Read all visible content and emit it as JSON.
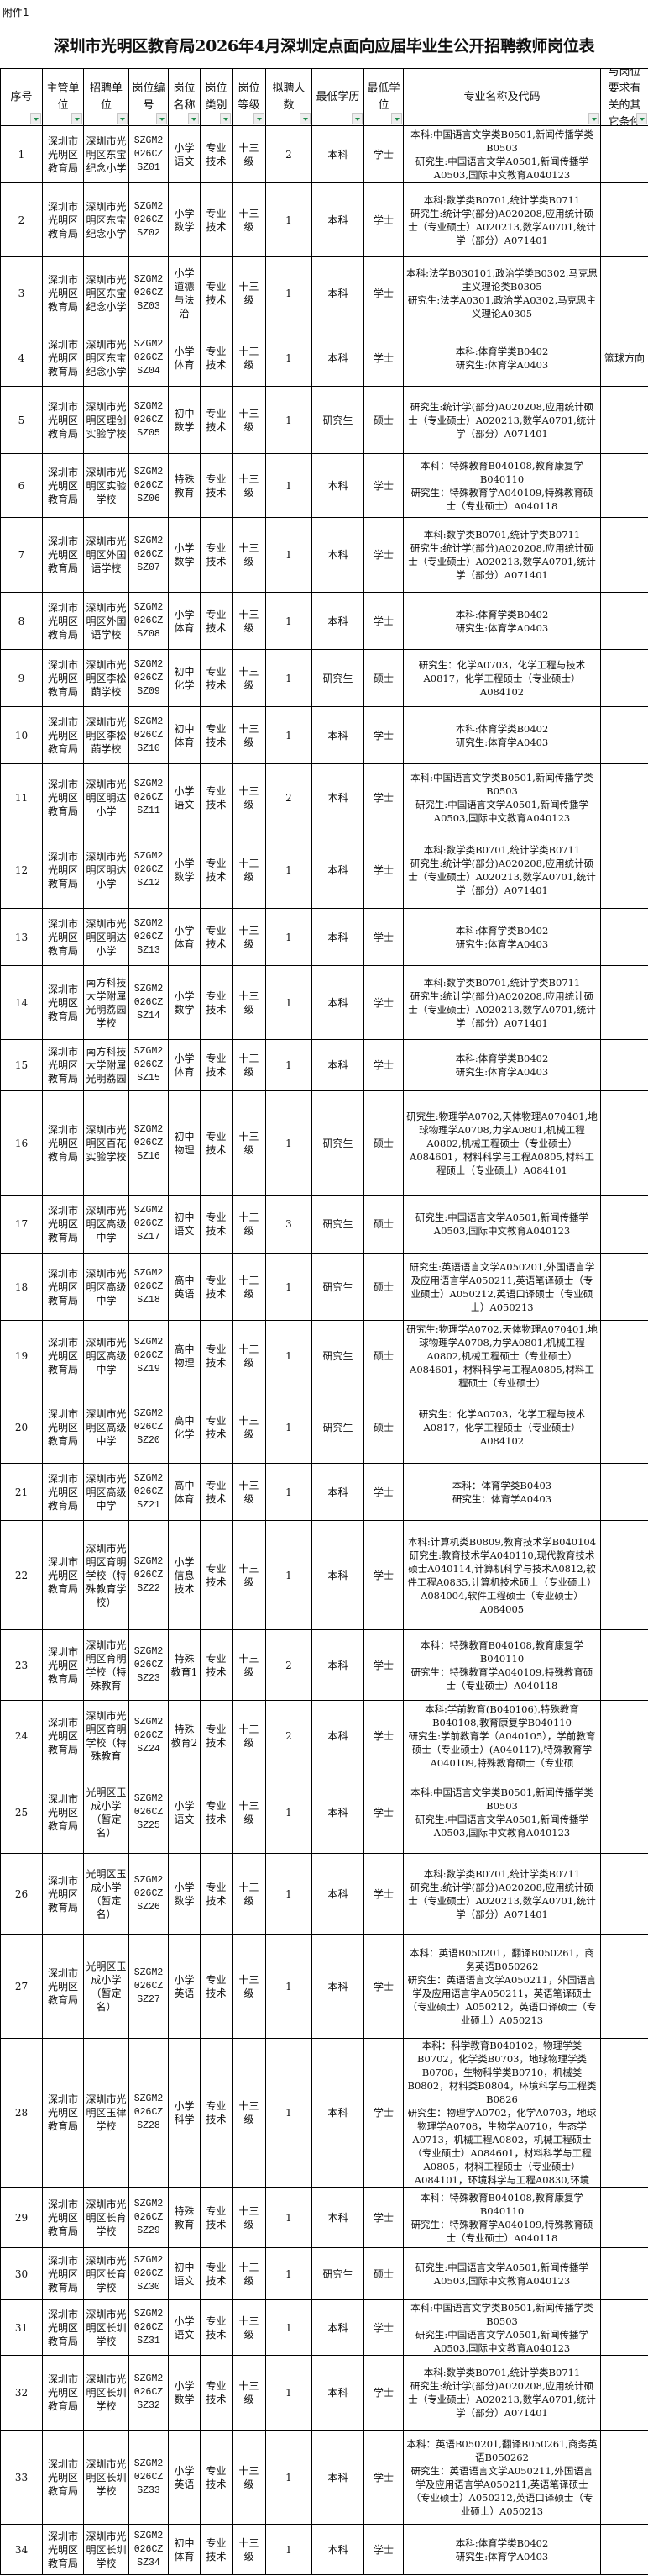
{
  "attachment_label": "附件1",
  "title": "深圳市光明区教育局2026年4月深圳定点面向应届毕业生公开招聘教师岗位表",
  "filter_icon_color": "#1e8a4a",
  "columns": [
    "序号",
    "主管单位",
    "招聘单位",
    "岗位编号",
    "岗位名称",
    "岗位类别",
    "岗位等级",
    "拟聘人数",
    "最低学历",
    "最低学位",
    "专业名称及代码",
    "与岗位要求有关的其它条件"
  ],
  "rows": [
    {
      "no": "1",
      "dept": "深圳市光明区教育局",
      "unit": "深圳市光明区东宝纪念小学",
      "code": "SZGM2026CZSZ01",
      "post": "小学语文",
      "type": "专业技术",
      "level": "十三级",
      "count": "2",
      "edu": "本科",
      "degree": "学士",
      "major": "本科:中国语言文学类B0501,新闻传播学类B0503\n研究生:中国语言文学A0501,新闻传播学A0503,国际中文教育A040123",
      "other": ""
    },
    {
      "no": "2",
      "dept": "深圳市光明区教育局",
      "unit": "深圳市光明区东宝纪念小学",
      "code": "SZGM2026CZSZ02",
      "post": "小学数学",
      "type": "专业技术",
      "level": "十三级",
      "count": "1",
      "edu": "本科",
      "degree": "学士",
      "major": "本科:数学类B0701,统计学类B0711\n研究生:统计学(部分)A020208,应用统计硕士（专业硕士）A020213,数学A0701,统计学（部分）A071401",
      "other": ""
    },
    {
      "no": "3",
      "dept": "深圳市光明区教育局",
      "unit": "深圳市光明区东宝纪念小学",
      "code": "SZGM2026CZSZ03",
      "post": "小学道德与法治",
      "type": "专业技术",
      "level": "十三级",
      "count": "1",
      "edu": "本科",
      "degree": "学士",
      "major": "本科:法学B030101,政治学类B0302,马克思主义理论类B0305\n研究生:法学A0301,政治学A0302,马克思主义理论A0305",
      "other": ""
    },
    {
      "no": "4",
      "dept": "深圳市光明区教育局",
      "unit": "深圳市光明区东宝纪念小学",
      "code": "SZGM2026CZSZ04",
      "post": "小学体育",
      "type": "专业技术",
      "level": "十三级",
      "count": "1",
      "edu": "本科",
      "degree": "学士",
      "major": "本科:体育学类B0402\n研究生:体育学A0403",
      "other": "篮球方向"
    },
    {
      "no": "5",
      "dept": "深圳市光明区教育局",
      "unit": "深圳市光明区理创实验学校",
      "code": "SZGM2026CZSZ05",
      "post": "初中数学",
      "type": "专业技术",
      "level": "十三级",
      "count": "1",
      "edu": "研究生",
      "degree": "硕士",
      "major": "研究生:统计学(部分)A020208,应用统计硕士（专业硕士）A020213,数学A0701,统计学（部分）A071401",
      "other": ""
    },
    {
      "no": "6",
      "dept": "深圳市光明区教育局",
      "unit": "深圳市光明区实验学校",
      "code": "SZGM2026CZSZ06",
      "post": "特殊教育",
      "type": "专业技术",
      "level": "十三级",
      "count": "1",
      "edu": "本科",
      "degree": "学士",
      "major": "本科：特殊教育B040108,教育康复学B040110\n研究生：特殊教育学A040109,特殊教育硕士（专业硕士）A040118",
      "other": ""
    },
    {
      "no": "7",
      "dept": "深圳市光明区教育局",
      "unit": "深圳市光明区外国语学校",
      "code": "SZGM2026CZSZ07",
      "post": "小学数学",
      "type": "专业技术",
      "level": "十三级",
      "count": "1",
      "edu": "本科",
      "degree": "学士",
      "major": "本科:数学类B0701,统计学类B0711\n研究生:统计学(部分)A020208,应用统计硕士（专业硕士）A020213,数学A0701,统计学（部分）A071401",
      "other": ""
    },
    {
      "no": "8",
      "dept": "深圳市光明区教育局",
      "unit": "深圳市光明区外国语学校",
      "code": "SZGM2026CZSZ08",
      "post": "小学体育",
      "type": "专业技术",
      "level": "十三级",
      "count": "1",
      "edu": "本科",
      "degree": "学士",
      "major": "本科:体育学类B0402\n研究生:体育学A0403",
      "other": ""
    },
    {
      "no": "9",
      "dept": "深圳市光明区教育局",
      "unit": "深圳市光明区李松蓢学校",
      "code": "SZGM2026CZSZ09",
      "post": "初中化学",
      "type": "专业技术",
      "level": "十三级",
      "count": "1",
      "edu": "研究生",
      "degree": "硕士",
      "major": "研究生：化学A0703，化学工程与技术A0817，化学工程硕士（专业硕士）A084102",
      "other": ""
    },
    {
      "no": "10",
      "dept": "深圳市光明区教育局",
      "unit": "深圳市光明区李松蓢学校",
      "code": "SZGM2026CZSZ10",
      "post": "初中体育",
      "type": "专业技术",
      "level": "十三级",
      "count": "1",
      "edu": "本科",
      "degree": "学士",
      "major": "本科:体育学类B0402\n研究生:体育学A0403",
      "other": ""
    },
    {
      "no": "11",
      "dept": "深圳市光明区教育局",
      "unit": "深圳市光明区明达小学",
      "code": "SZGM2026CZSZ11",
      "post": "小学语文",
      "type": "专业技术",
      "level": "十三级",
      "count": "2",
      "edu": "本科",
      "degree": "学士",
      "major": "本科:中国语言文学类B0501,新闻传播学类B0503\n研究生:中国语言文学A0501,新闻传播学A0503,国际中文教育A040123",
      "other": ""
    },
    {
      "no": "12",
      "dept": "深圳市光明区教育局",
      "unit": "深圳市光明区明达小学",
      "code": "SZGM2026CZSZ12",
      "post": "小学数学",
      "type": "专业技术",
      "level": "十三级",
      "count": "1",
      "edu": "本科",
      "degree": "学士",
      "major": "本科:数学类B0701,统计学类B0711\n研究生:统计学(部分)A020208,应用统计硕士（专业硕士）A020213,数学A0701,统计学（部分）A071401",
      "other": ""
    },
    {
      "no": "13",
      "dept": "深圳市光明区教育局",
      "unit": "深圳市光明区明达小学",
      "code": "SZGM2026CZSZ13",
      "post": "小学体育",
      "type": "专业技术",
      "level": "十三级",
      "count": "1",
      "edu": "本科",
      "degree": "学士",
      "major": "本科:体育学类B0402\n研究生:体育学A0403",
      "other": ""
    },
    {
      "no": "14",
      "dept": "深圳市光明区教育局",
      "unit": "南方科技大学附属光明荔园学校",
      "code": "SZGM2026CZSZ14",
      "post": "小学数学",
      "type": "专业技术",
      "level": "十三级",
      "count": "1",
      "edu": "本科",
      "degree": "学士",
      "major": "本科:数学类B0701,统计学类B0711\n研究生:统计学(部分)A020208,应用统计硕士（专业硕士）A020213,数学A0701,统计学（部分）A071401",
      "other": ""
    },
    {
      "no": "15",
      "dept": "深圳市光明区教育局",
      "unit": "南方科技大学附属光明荔园",
      "code": "SZGM2026CZSZ15",
      "post": "小学体育",
      "type": "专业技术",
      "level": "十三级",
      "count": "1",
      "edu": "本科",
      "degree": "学士",
      "major": "本科:体育学类B0402\n研究生:体育学A0403",
      "other": ""
    },
    {
      "no": "16",
      "dept": "深圳市光明区教育局",
      "unit": "深圳市光明区百花实验学校",
      "code": "SZGM2026CZSZ16",
      "post": "初中物理",
      "type": "专业技术",
      "level": "十三级",
      "count": "1",
      "edu": "研究生",
      "degree": "硕士",
      "major": "研究生:物理学A0702,天体物理A070401,地球物理学A0708,力学A0801,机械工程A0802,机械工程硕士（专业硕士）A084601，材料科学与工程A0805,材料工程硕士（专业硕士）A084101",
      "other": ""
    },
    {
      "no": "17",
      "dept": "深圳市光明区教育局",
      "unit": "深圳市光明区高级中学",
      "code": "SZGM2026CZSZ17",
      "post": "初中语文",
      "type": "专业技术",
      "level": "十三级",
      "count": "3",
      "edu": "研究生",
      "degree": "硕士",
      "major": "研究生:中国语言文学A0501,新闻传播学A0503,国际中文教育A040123",
      "other": ""
    },
    {
      "no": "18",
      "dept": "深圳市光明区教育局",
      "unit": "深圳市光明区高级中学",
      "code": "SZGM2026CZSZ18",
      "post": "高中英语",
      "type": "专业技术",
      "level": "十三级",
      "count": "1",
      "edu": "研究生",
      "degree": "硕士",
      "major": "研究生:英语语言文学A050201,外国语言学及应用语言学A050211,英语笔译硕士（专业硕士）A050212,英语口译硕士（专业硕士）A050213",
      "other": ""
    },
    {
      "no": "19",
      "dept": "深圳市光明区教育局",
      "unit": "深圳市光明区高级中学",
      "code": "SZGM2026CZSZ19",
      "post": "高中物理",
      "type": "专业技术",
      "level": "十三级",
      "count": "1",
      "edu": "研究生",
      "degree": "硕士",
      "major": "研究生:物理学A0702,天体物理A070401,地球物理学A0708,力学A0801,机械工程A0802,机械工程硕士（专业硕士）A084601，材料科学与工程A0805,材料工程硕士（专业硕士）",
      "other": ""
    },
    {
      "no": "20",
      "dept": "深圳市光明区教育局",
      "unit": "深圳市光明区高级中学",
      "code": "SZGM2026CZSZ20",
      "post": "高中化学",
      "type": "专业技术",
      "level": "十三级",
      "count": "1",
      "edu": "研究生",
      "degree": "硕士",
      "major": "研究生：化学A0703，化学工程与技术A0817，化学工程硕士（专业硕士）A084102",
      "other": ""
    },
    {
      "no": "21",
      "dept": "深圳市光明区教育局",
      "unit": "深圳市光明区高级中学",
      "code": "SZGM2026CZSZ21",
      "post": "高中体育",
      "type": "专业技术",
      "level": "十三级",
      "count": "1",
      "edu": "本科",
      "degree": "学士",
      "major": "本科：体育学类B0403\n研究生：体育学A0403",
      "other": ""
    },
    {
      "no": "22",
      "dept": "深圳市光明区教育局",
      "unit": "深圳市光明区育明学校（特殊教育学校）",
      "code": "SZGM2026CZSZ22",
      "post": "小学信息技术",
      "type": "专业技术",
      "level": "十三级",
      "count": "1",
      "edu": "本科",
      "degree": "学士",
      "major": "本科:计算机类B0809,教育技术学B040104\n研究生:教育技术学A040110,现代教育技术硕士A040114,计算机科学与技术A0812,软件工程A0835,计算机技术硕士（专业硕士）A084004,软件工程硕士（专业硕士）A084005",
      "other": ""
    },
    {
      "no": "23",
      "dept": "深圳市光明区教育局",
      "unit": "深圳市光明区育明学校（特殊教育",
      "code": "SZGM2026CZSZ23",
      "post": "特殊教育1",
      "type": "专业技术",
      "level": "十三级",
      "count": "2",
      "edu": "本科",
      "degree": "学士",
      "major": "本科：特殊教育B040108,教育康复学B040110\n研究生：特殊教育学A040109,特殊教育硕士（专业硕士）A040118",
      "other": ""
    },
    {
      "no": "24",
      "dept": "深圳市光明区教育局",
      "unit": "深圳市光明区育明学校（特殊教育",
      "code": "SZGM2026CZSZ24",
      "post": "特殊教育2",
      "type": "专业技术",
      "level": "十三级",
      "count": "2",
      "edu": "本科",
      "degree": "学士",
      "major": "本科:学前教育(B040106),特殊教育B040108,教育康复学B040110\n研究生:学前教育学（A040105），学前教育硕士（专业硕士）(A040117),特殊教育学A040109,特殊教育硕士（专业硕",
      "other": ""
    },
    {
      "no": "25",
      "dept": "深圳市光明区教育局",
      "unit": "光明区玉成小学（暂定名）",
      "code": "SZGM2026CZSZ25",
      "post": "小学语文",
      "type": "专业技术",
      "level": "十三级",
      "count": "1",
      "edu": "本科",
      "degree": "学士",
      "major": "本科:中国语言文学类B0501,新闻传播学类B0503\n研究生:中国语言文学A0501,新闻传播学A0503,国际中文教育A040123",
      "other": ""
    },
    {
      "no": "26",
      "dept": "深圳市光明区教育局",
      "unit": "光明区玉成小学（暂定名）",
      "code": "SZGM2026CZSZ26",
      "post": "小学数学",
      "type": "专业技术",
      "level": "十三级",
      "count": "1",
      "edu": "本科",
      "degree": "学士",
      "major": "本科:数学类B0701,统计学类B0711\n研究生:统计学(部分)A020208,应用统计硕士（专业硕士）A020213,数学A0701,统计学（部分）A071401",
      "other": ""
    },
    {
      "no": "27",
      "dept": "深圳市光明区教育局",
      "unit": "光明区玉成小学（暂定名）",
      "code": "SZGM2026CZSZ27",
      "post": "小学英语",
      "type": "专业技术",
      "level": "十三级",
      "count": "1",
      "edu": "本科",
      "degree": "学士",
      "major": "本科：英语B050201，翻译B050261，商务英语B050262\n研究生：英语语言文学A050211，外国语言学及应用语言学A050211，英语笔译硕士（专业硕士）A050212，英语口译硕士（专业硕士）A050213",
      "other": ""
    },
    {
      "no": "28",
      "dept": "深圳市光明区教育局",
      "unit": "深圳市光明区玉律学校",
      "code": "SZGM2026CZSZ28",
      "post": "小学科学",
      "type": "专业技术",
      "level": "十三级",
      "count": "1",
      "edu": "本科",
      "degree": "学士",
      "major": "本科：科学教育B040102，物理学类B0702，化学类B0703，地球物理学类B0708，生物科学类B0710，机械类B0802，材料类B0804，环境科学与工程类B0826\n研究生：物理学A0702，化学A0703，地球物理学A0708，生物学A0710，生态学A0713，机械工程A0802，机械工程硕士（专业硕士）A084601，材料科学与工程A0805，材料工程硕士（专业硕士）A084101，环境科学与工程A0830,环境",
      "other": ""
    },
    {
      "no": "29",
      "dept": "深圳市光明区教育局",
      "unit": "深圳市光明区长育学校",
      "code": "SZGM2026CZSZ29",
      "post": "特殊教育",
      "type": "专业技术",
      "level": "十三级",
      "count": "1",
      "edu": "本科",
      "degree": "学士",
      "major": "本科：特殊教育B040108,教育康复学B040110\n研究生：特殊教育学A040109,特殊教育硕士（专业硕士）A040118",
      "other": ""
    },
    {
      "no": "30",
      "dept": "深圳市光明区教育局",
      "unit": "深圳市光明区长育学校",
      "code": "SZGM2026CZSZ30",
      "post": "初中语文",
      "type": "专业技术",
      "level": "十三级",
      "count": "1",
      "edu": "研究生",
      "degree": "硕士",
      "major": "研究生:中国语言文学A0501,新闻传播学A0503,国际中文教育A040123",
      "other": ""
    },
    {
      "no": "31",
      "dept": "深圳市光明区教育局",
      "unit": "深圳市光明区长圳学校",
      "code": "SZGM2026CZSZ31",
      "post": "小学语文",
      "type": "专业技术",
      "level": "十三级",
      "count": "1",
      "edu": "本科",
      "degree": "学士",
      "major": "本科:中国语言文学类B0501,新闻传播学类B0503\n研究生:中国语言文学A0501,新闻传播学A0503,国际中文教育A040123",
      "other": ""
    },
    {
      "no": "32",
      "dept": "深圳市光明区教育局",
      "unit": "深圳市光明区长圳学校",
      "code": "SZGM2026CZSZ32",
      "post": "小学数学",
      "type": "专业技术",
      "level": "十三级",
      "count": "1",
      "edu": "本科",
      "degree": "学士",
      "major": "本科:数学类B0701,统计学类B0711\n研究生:统计学(部分)A020208,应用统计硕士（专业硕士）A020213,数学A0701,统计学（部分）A071401",
      "other": ""
    },
    {
      "no": "33",
      "dept": "深圳市光明区教育局",
      "unit": "深圳市光明区长圳学校",
      "code": "SZGM2026CZSZ33",
      "post": "小学英语",
      "type": "专业技术",
      "level": "十三级",
      "count": "1",
      "edu": "本科",
      "degree": "学士",
      "major": "本科：英语B050201,翻译B050261,商务英语B050262\n研究生：英语语言文学A050211,外国语言学及应用语言学A050211,英语笔译硕士（专业硕士）A050212,英语口译硕士（专业硕士）A050213",
      "other": ""
    },
    {
      "no": "34",
      "dept": "深圳市光明区教育局",
      "unit": "深圳市光明区长圳学校",
      "code": "SZGM2026CZSZ34",
      "post": "初中体育",
      "type": "专业技术",
      "level": "十三级",
      "count": "1",
      "edu": "本科",
      "degree": "学士",
      "major": "本科:体育学类B0402\n研究生:体育学A0403",
      "other": ""
    }
  ]
}
